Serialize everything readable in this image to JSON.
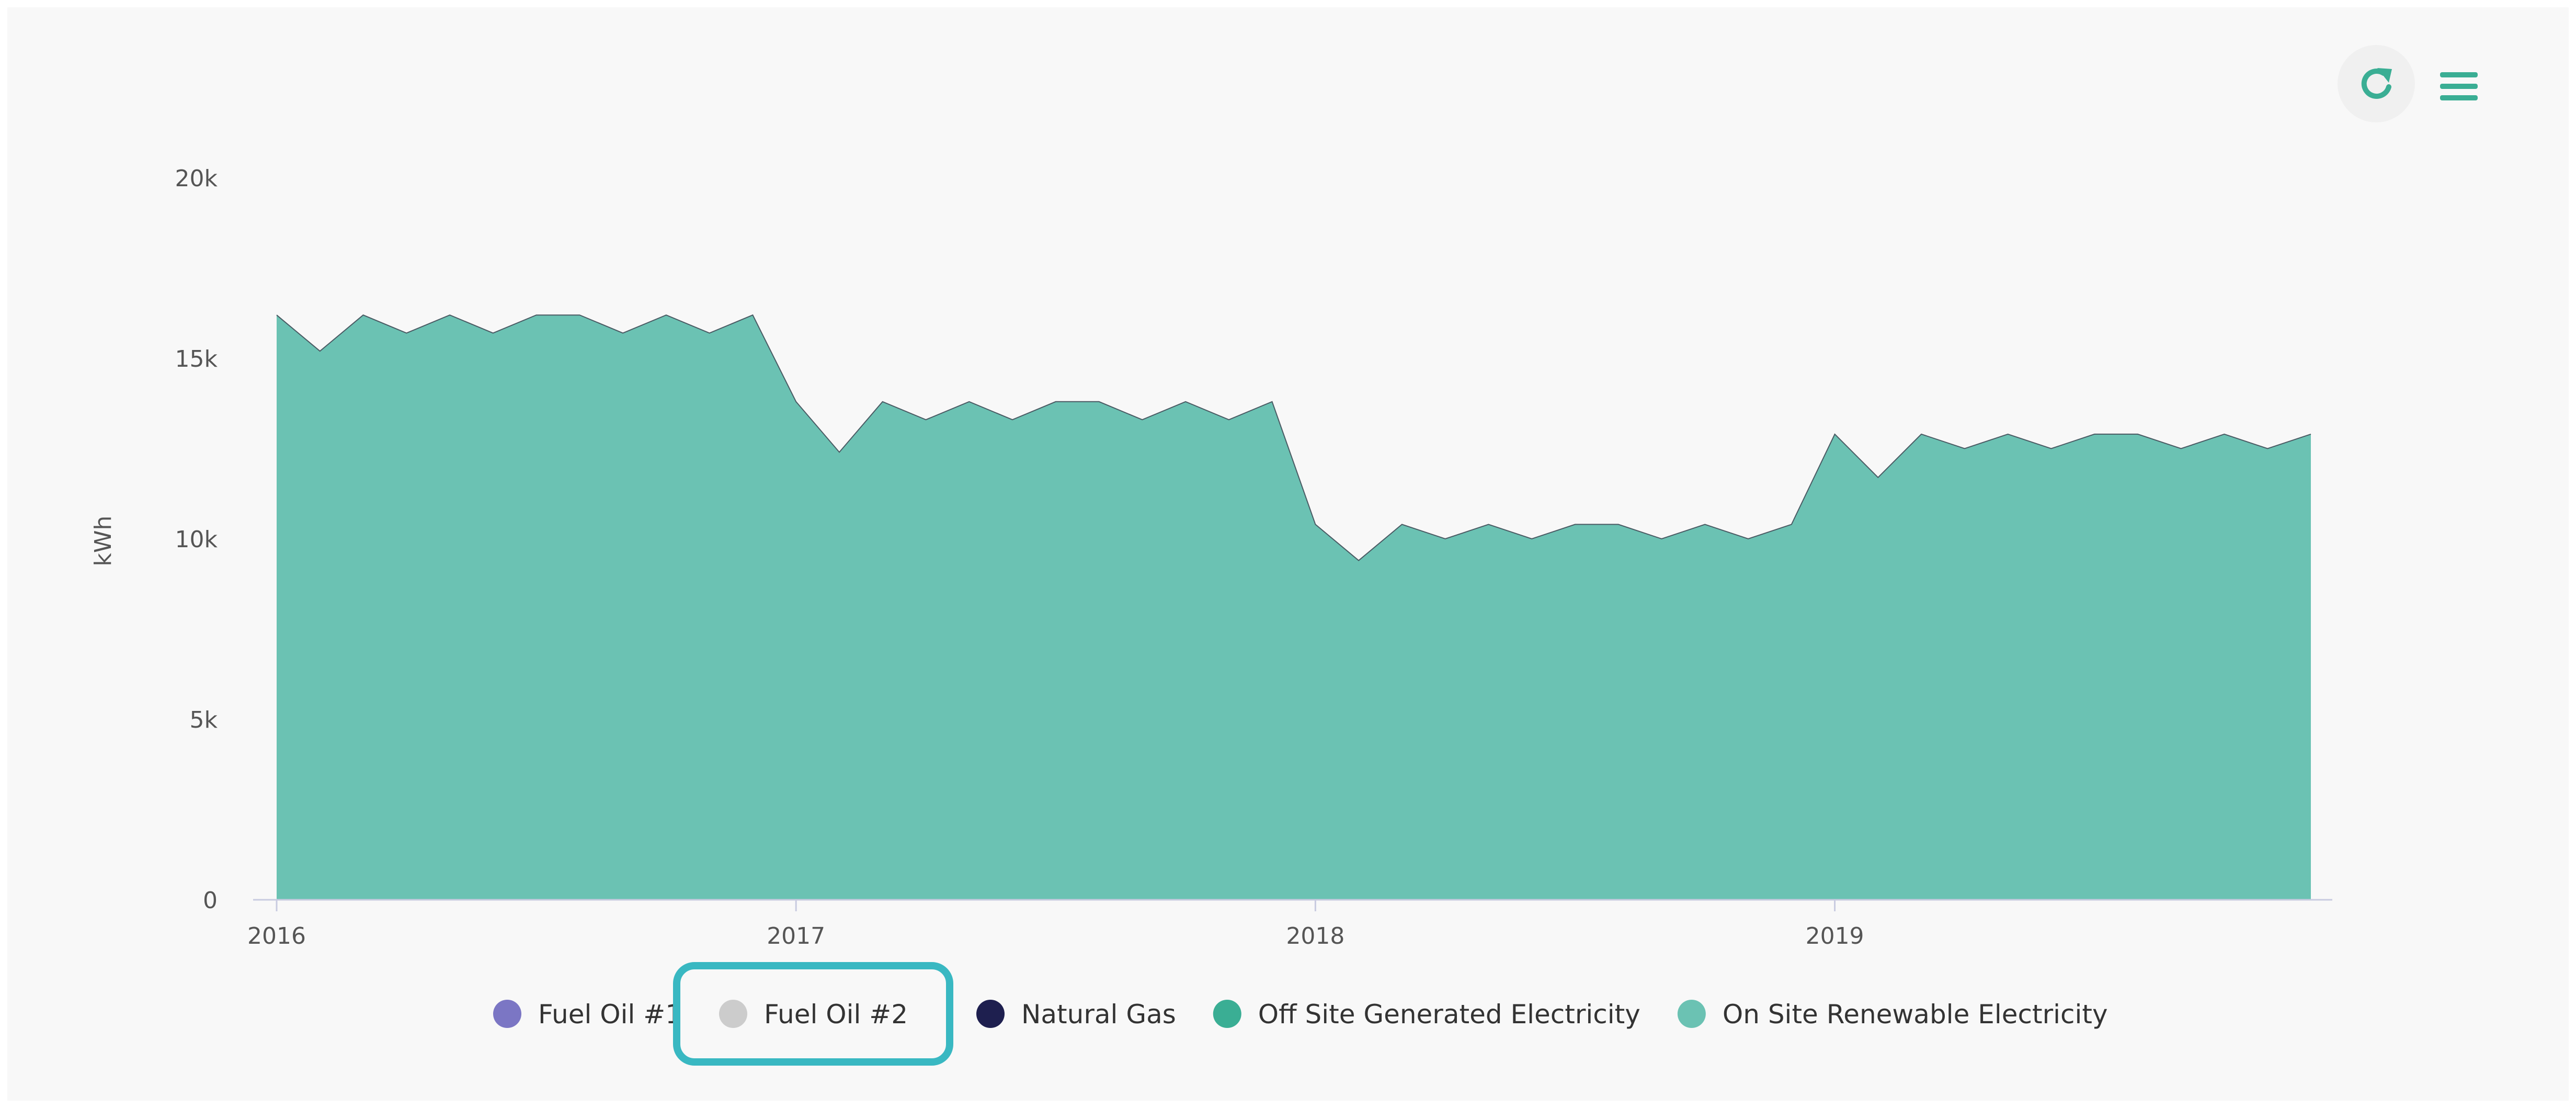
{
  "toolbar": {
    "refresh_icon": "refresh-icon",
    "menu_icon": "hamburger-menu-icon",
    "accent_color": "#3aae94"
  },
  "chart_data": {
    "type": "area",
    "title": "",
    "xlabel": "",
    "ylabel": "kWh",
    "ylim": [
      0,
      20000
    ],
    "y_ticks": [
      {
        "value": 0,
        "label": "0"
      },
      {
        "value": 5000,
        "label": "5k"
      },
      {
        "value": 10000,
        "label": "10k"
      },
      {
        "value": 15000,
        "label": "15k"
      },
      {
        "value": 20000,
        "label": "20k"
      }
    ],
    "x_ticks": [
      {
        "value": "2016-01",
        "label": "2016"
      },
      {
        "value": "2017-01",
        "label": "2017"
      },
      {
        "value": "2018-01",
        "label": "2018"
      },
      {
        "value": "2019-01",
        "label": "2019"
      }
    ],
    "x": [
      "2016-01",
      "2016-02",
      "2016-03",
      "2016-04",
      "2016-05",
      "2016-06",
      "2016-07",
      "2016-08",
      "2016-09",
      "2016-10",
      "2016-11",
      "2016-12",
      "2017-01",
      "2017-02",
      "2017-03",
      "2017-04",
      "2017-05",
      "2017-06",
      "2017-07",
      "2017-08",
      "2017-09",
      "2017-10",
      "2017-11",
      "2017-12",
      "2018-01",
      "2018-02",
      "2018-03",
      "2018-04",
      "2018-05",
      "2018-06",
      "2018-07",
      "2018-08",
      "2018-09",
      "2018-10",
      "2018-11",
      "2018-12",
      "2019-01",
      "2019-02",
      "2019-03",
      "2019-04",
      "2019-05",
      "2019-06",
      "2019-07",
      "2019-08",
      "2019-09",
      "2019-10",
      "2019-11",
      "2019-12"
    ],
    "series": [
      {
        "name": "Fuel Oil #1",
        "color": "#7b76c4",
        "visible": true,
        "values": [
          0,
          0,
          0,
          0,
          0,
          0,
          0,
          0,
          0,
          0,
          0,
          0,
          0,
          0,
          0,
          0,
          0,
          0,
          0,
          0,
          0,
          0,
          0,
          0,
          0,
          0,
          0,
          0,
          0,
          0,
          0,
          0,
          0,
          0,
          0,
          0,
          0,
          0,
          0,
          0,
          0,
          0,
          0,
          0,
          0,
          0,
          0,
          0
        ]
      },
      {
        "name": "Fuel Oil #2",
        "color": "#cccccc",
        "visible": false,
        "values": [
          0,
          0,
          0,
          0,
          0,
          0,
          0,
          0,
          0,
          0,
          0,
          0,
          0,
          0,
          0,
          0,
          0,
          0,
          0,
          0,
          0,
          0,
          0,
          0,
          0,
          0,
          0,
          0,
          0,
          0,
          0,
          0,
          0,
          0,
          0,
          0,
          0,
          0,
          0,
          0,
          0,
          0,
          0,
          0,
          0,
          0,
          0,
          0
        ]
      },
      {
        "name": "Natural Gas",
        "color": "#1e1f4f",
        "visible": true,
        "values": [
          0,
          0,
          0,
          0,
          0,
          0,
          0,
          0,
          0,
          0,
          0,
          0,
          0,
          0,
          0,
          0,
          0,
          0,
          0,
          0,
          0,
          0,
          0,
          0,
          0,
          0,
          0,
          0,
          0,
          0,
          0,
          0,
          0,
          0,
          0,
          0,
          0,
          0,
          0,
          0,
          0,
          0,
          0,
          0,
          0,
          0,
          0,
          0
        ]
      },
      {
        "name": "Off Site Generated Electricity",
        "color": "#3aae94",
        "visible": true,
        "values": [
          0,
          0,
          0,
          0,
          0,
          0,
          0,
          0,
          0,
          0,
          0,
          0,
          0,
          0,
          0,
          0,
          0,
          0,
          0,
          0,
          0,
          0,
          0,
          0,
          0,
          0,
          0,
          0,
          0,
          0,
          0,
          0,
          0,
          0,
          0,
          0,
          0,
          0,
          0,
          0,
          0,
          0,
          0,
          0,
          0,
          0,
          0,
          0
        ]
      },
      {
        "name": "On Site Renewable Electricity",
        "color": "#6bc2b3",
        "visible": true,
        "values": [
          16200,
          15200,
          16200,
          15700,
          16200,
          15700,
          16200,
          16200,
          15700,
          16200,
          15700,
          16200,
          13800,
          12400,
          13800,
          13300,
          13800,
          13300,
          13800,
          13800,
          13300,
          13800,
          13300,
          13800,
          10400,
          9400,
          10400,
          10000,
          10400,
          10000,
          10400,
          10400,
          10000,
          10400,
          10000,
          10400,
          12900,
          11700,
          12900,
          12500,
          12900,
          12500,
          12900,
          12900,
          12500,
          12900,
          12500,
          12900
        ]
      }
    ],
    "legend_position": "bottom",
    "legend_highlighted": "Fuel Oil #2",
    "grid": false
  }
}
